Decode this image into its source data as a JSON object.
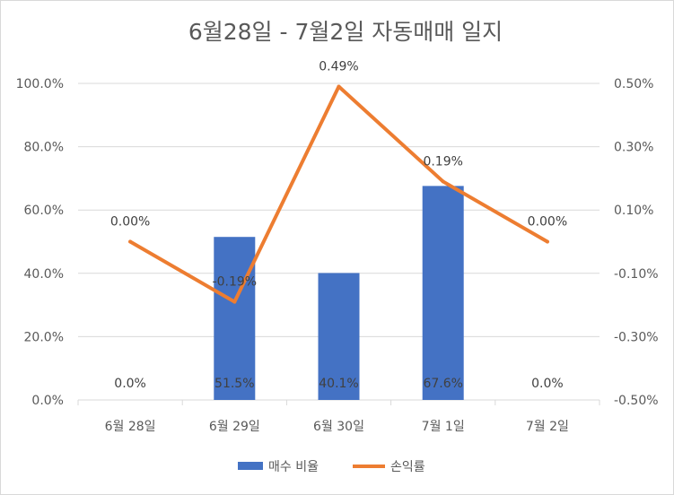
{
  "chart_data": {
    "type": "bar",
    "title": "6월28일 - 7월2일 자동매매 일지",
    "categories": [
      "6월 28일",
      "6월 29일",
      "6월 30일",
      "7월 1일",
      "7월 2일"
    ],
    "series": [
      {
        "name": "매수 비율",
        "kind": "bar",
        "axis": "left",
        "color": "#4472C4",
        "values": [
          0.0,
          51.5,
          40.1,
          67.6,
          0.0
        ],
        "labels": [
          "0.0%",
          "51.5%",
          "40.1%",
          "67.6%",
          "0.0%"
        ]
      },
      {
        "name": "손익률",
        "kind": "line",
        "axis": "right",
        "color": "#ED7D31",
        "values": [
          0.0,
          -0.19,
          0.49,
          0.19,
          0.0
        ],
        "labels": [
          "0.00%",
          "-0.19%",
          "0.49%",
          "0.19%",
          "0.00%"
        ]
      }
    ],
    "y_left": {
      "ylim": [
        0,
        100
      ],
      "ticks": [
        0,
        20,
        40,
        60,
        80,
        100
      ],
      "tick_labels": [
        "0.0%",
        "20.0%",
        "40.0%",
        "60.0%",
        "80.0%",
        "100.0%"
      ]
    },
    "y_right": {
      "ylim": [
        -0.5,
        0.5
      ],
      "ticks": [
        -0.5,
        -0.3,
        -0.1,
        0.1,
        0.3,
        0.5
      ],
      "tick_labels": [
        "-0.50%",
        "-0.30%",
        "-0.10%",
        "0.10%",
        "0.30%",
        "0.50%"
      ]
    },
    "grid": true,
    "legend": "bottom"
  }
}
